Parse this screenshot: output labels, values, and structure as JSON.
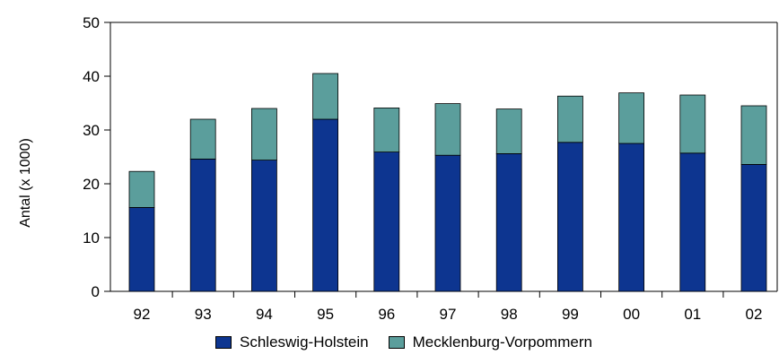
{
  "chart_data": {
    "type": "bar",
    "stacked": true,
    "title": "",
    "xlabel": "",
    "ylabel": "Antal (x 1000)",
    "ylim": [
      0,
      50
    ],
    "yticks": [
      0,
      10,
      20,
      30,
      40,
      50
    ],
    "categories": [
      "92",
      "93",
      "94",
      "95",
      "96",
      "97",
      "98",
      "99",
      "00",
      "01",
      "02"
    ],
    "series": [
      {
        "name": "Schleswig-Holstein",
        "color": "#0d3590",
        "values": [
          15.6,
          24.6,
          24.4,
          32.0,
          25.9,
          25.3,
          25.6,
          27.7,
          27.5,
          25.7,
          23.6
        ]
      },
      {
        "name": "Mecklenburg-Vorpommern",
        "color": "#5b9e9c",
        "values": [
          6.7,
          7.4,
          9.6,
          8.5,
          8.2,
          9.6,
          8.3,
          8.6,
          9.4,
          10.8,
          10.9
        ]
      }
    ],
    "grid": false,
    "legend": "bottom"
  }
}
